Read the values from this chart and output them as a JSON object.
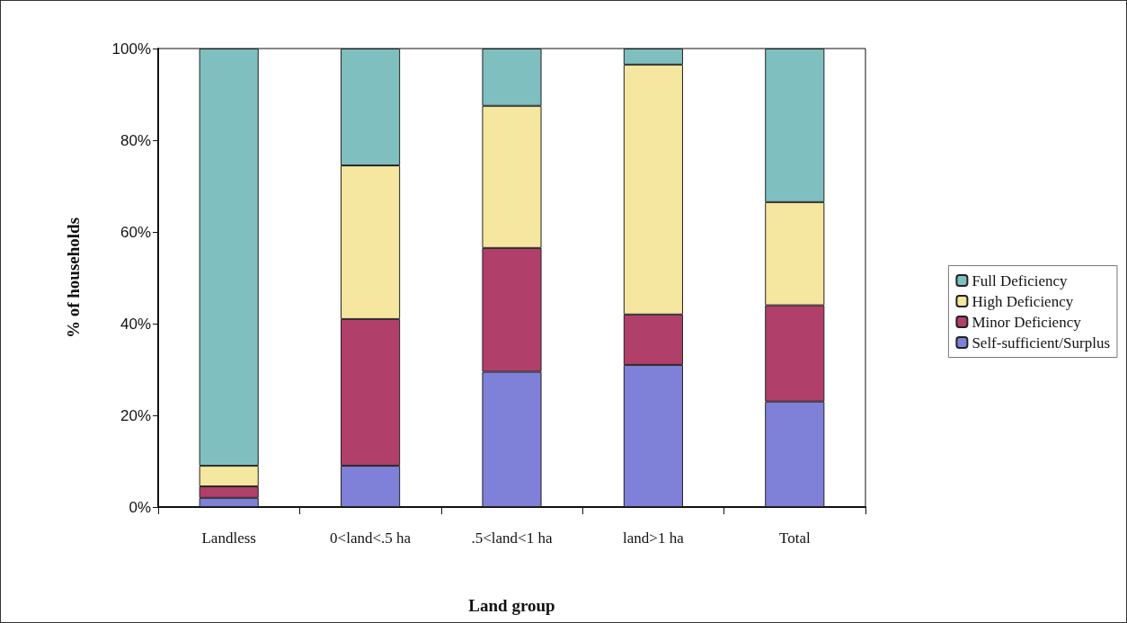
{
  "chart_data": {
    "type": "bar",
    "stacked": true,
    "xlabel": "Land group",
    "ylabel": "% of households",
    "categories": [
      "Landless",
      "0<land<.5 ha",
      ".5<land<1 ha",
      "land>1 ha",
      "Total"
    ],
    "series": [
      {
        "name": "Self-sufficient/Surplus",
        "color": "#7f80d8",
        "values": [
          2,
          9,
          29.5,
          31,
          23
        ]
      },
      {
        "name": "Minor Deficiency",
        "color": "#b0406a",
        "values": [
          2.5,
          32,
          27,
          11,
          21
        ]
      },
      {
        "name": "High Deficiency",
        "color": "#f5e6a0",
        "values": [
          4.5,
          33.5,
          31,
          54.5,
          22.5
        ]
      },
      {
        "name": "Full Deficiency",
        "color": "#7fbfbf",
        "values": [
          91,
          25.5,
          12.5,
          3.5,
          33.5
        ]
      }
    ],
    "ylim": [
      0,
      100
    ],
    "yticks": [
      {
        "value": 0,
        "label": "0%"
      },
      {
        "value": 20,
        "label": "20%"
      },
      {
        "value": 40,
        "label": "40%"
      },
      {
        "value": 60,
        "label": "60%"
      },
      {
        "value": 80,
        "label": "80%"
      },
      {
        "value": 100,
        "label": "100%"
      }
    ],
    "grid": false,
    "legend": "right"
  }
}
